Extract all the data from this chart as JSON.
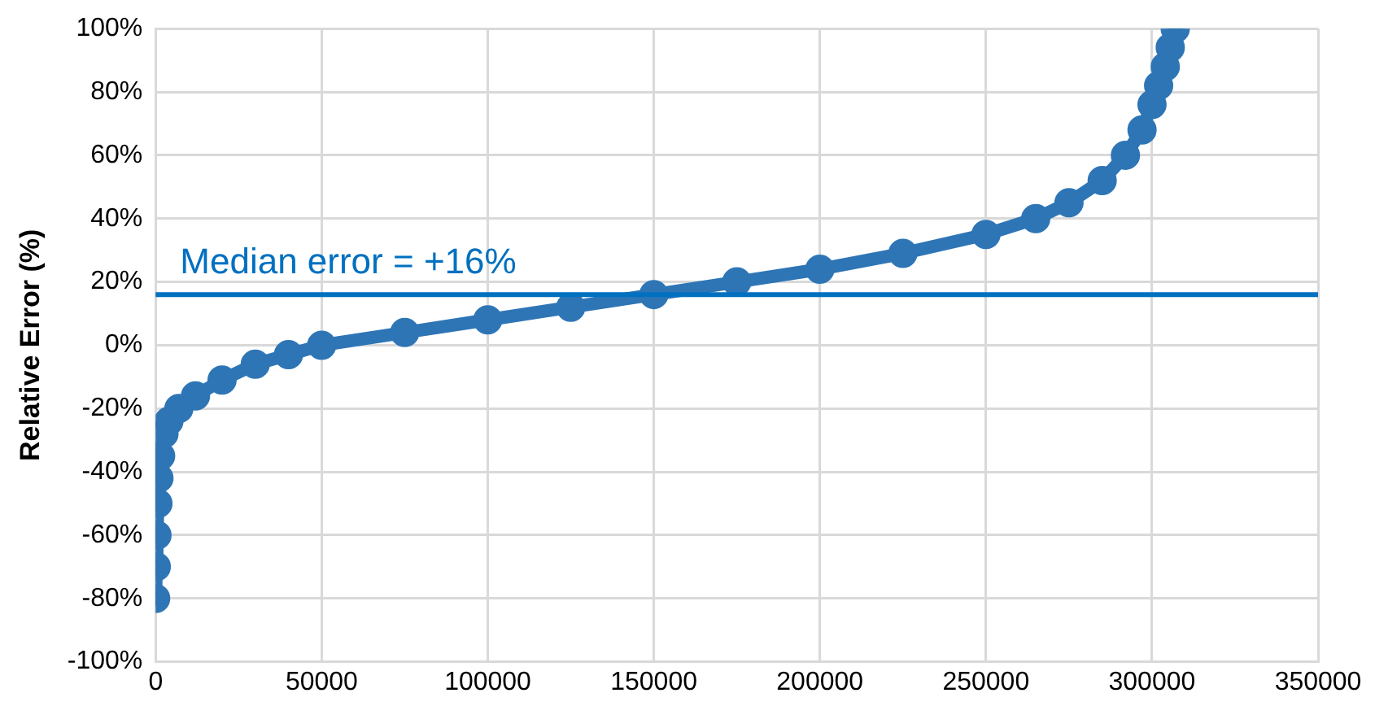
{
  "chart_data": {
    "type": "line",
    "ylabel": "Relative Error (%)",
    "x": [
      0,
      200,
      400,
      700,
      1000,
      1500,
      2500,
      4000,
      7000,
      12000,
      20000,
      30000,
      40000,
      50000,
      75000,
      100000,
      125000,
      150000,
      175000,
      200000,
      225000,
      250000,
      265000,
      275000,
      285000,
      292000,
      297000,
      300000,
      302000,
      304000,
      305500,
      307000
    ],
    "series": [
      {
        "color": "#2e75b6",
        "values": [
          -80,
          -70,
          -60,
          -50,
          -42,
          -35,
          -28,
          -24,
          -20,
          -16,
          -11,
          -6,
          -3,
          0,
          4,
          8,
          12,
          16,
          20,
          24,
          29,
          35,
          40,
          45,
          52,
          60,
          68,
          76,
          82,
          88,
          94,
          100
        ]
      }
    ],
    "xlim": [
      0,
      350000
    ],
    "xticks": [
      0,
      50000,
      100000,
      150000,
      200000,
      250000,
      300000,
      350000
    ],
    "ylim": [
      -100,
      100
    ],
    "yticks": [
      {
        "value": -100,
        "label": "-100%"
      },
      {
        "value": -80,
        "label": "-80%"
      },
      {
        "value": -60,
        "label": "-60%"
      },
      {
        "value": -40,
        "label": "-40%"
      },
      {
        "value": -20,
        "label": "-20%"
      },
      {
        "value": 0,
        "label": "0%"
      },
      {
        "value": 20,
        "label": "20%"
      },
      {
        "value": 40,
        "label": "40%"
      },
      {
        "value": 60,
        "label": "60%"
      },
      {
        "value": 80,
        "label": "80%"
      },
      {
        "value": 100,
        "label": "100%"
      }
    ],
    "ref_lines": [
      {
        "axis": "y",
        "value": 16,
        "label": "Median error = +16%",
        "color": "#0070c0"
      }
    ],
    "grid": true,
    "marker": "circle",
    "legend": false
  }
}
